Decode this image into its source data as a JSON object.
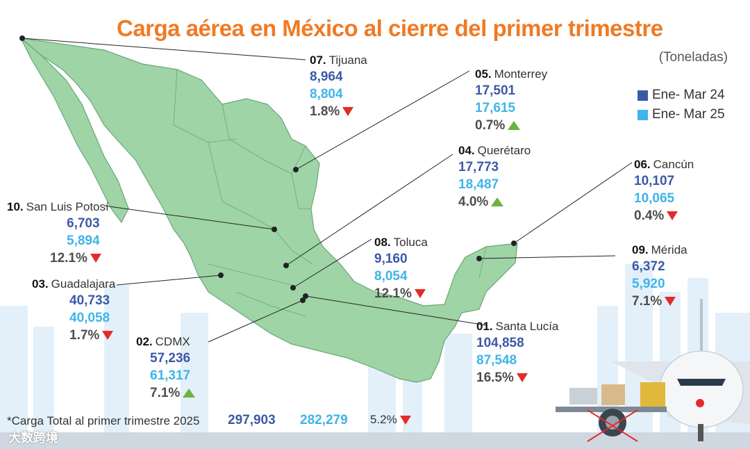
{
  "title": "Carga aérea en México al cierre del primer trimestre",
  "unit_note": "(Toneladas)",
  "colors": {
    "title": "#f07a23",
    "ene_mar_24": "#3b5aa6",
    "ene_mar_25": "#3fb4ea",
    "decrease": "#e32b2b",
    "increase": "#6cb33f",
    "map": "#9fd4a6"
  },
  "legend": [
    {
      "label": "Ene- Mar 24",
      "color": "#3b5aa6"
    },
    {
      "label": "Ene- Mar 25",
      "color": "#3fb4ea"
    }
  ],
  "chart_data": {
    "type": "table",
    "title": "Carga aérea en México al cierre del primer trimestre",
    "unit": "(Toneladas)",
    "series_labels": [
      "Ene- Mar 24",
      "Ene- Mar 25"
    ],
    "airports": [
      {
        "rank": "01.",
        "name": "Santa Lucía",
        "v24": "104,858",
        "v25": "87,548",
        "change": "16.5%",
        "direction": "down"
      },
      {
        "rank": "02.",
        "name": "CDMX",
        "v24": "57,236",
        "v25": "61,317",
        "change": "7.1%",
        "direction": "up"
      },
      {
        "rank": "03.",
        "name": "Guadalajara",
        "v24": "40,733",
        "v25": "40,058",
        "change": "1.7%",
        "direction": "down"
      },
      {
        "rank": "04.",
        "name": "Querétaro",
        "v24": "17,773",
        "v25": "18,487",
        "change": "4.0%",
        "direction": "up"
      },
      {
        "rank": "05.",
        "name": "Monterrey",
        "v24": "17,501",
        "v25": "17,615",
        "change": "0.7%",
        "direction": "up"
      },
      {
        "rank": "06.",
        "name": "Cancún",
        "v24": "10,107",
        "v25": "10,065",
        "change": "0.4%",
        "direction": "down"
      },
      {
        "rank": "07.",
        "name": "Tijuana",
        "v24": "8,964",
        "v25": "8,804",
        "change": "1.8%",
        "direction": "down"
      },
      {
        "rank": "08.",
        "name": "Toluca",
        "v24": "9,160",
        "v25": "8,054",
        "change": "12.1%",
        "direction": "down"
      },
      {
        "rank": "09.",
        "name": "Mérida",
        "v24": "6,372",
        "v25": "5,920",
        "change": "7.1%",
        "direction": "down"
      },
      {
        "rank": "10.",
        "name": "San Luis Potosí",
        "v24": "6,703",
        "v25": "5,894",
        "change": "12.1%",
        "direction": "down"
      }
    ],
    "total": {
      "label": "*Carga Total al primer trimestre 2025",
      "v24": "297,903",
      "v25": "282,279",
      "change": "5.2%",
      "direction": "down"
    }
  },
  "watermark": "大数跨境"
}
